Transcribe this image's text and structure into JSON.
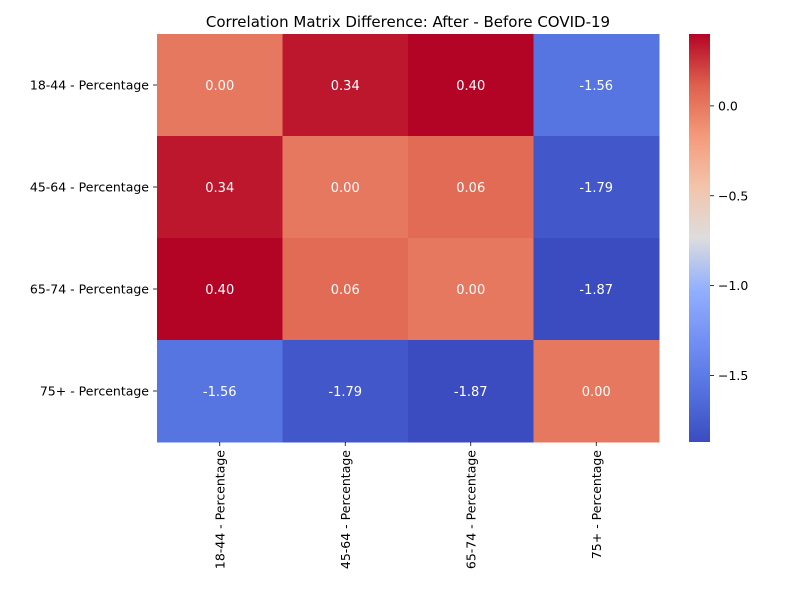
{
  "chart_data": {
    "type": "heatmap",
    "title": "Correlation Matrix Difference: After - Before COVID-19",
    "rows": [
      "18-44 - Percentage",
      "45-64 - Percentage",
      "65-74 - Percentage",
      "75+ - Percentage"
    ],
    "columns": [
      "18-44 - Percentage",
      "45-64 - Percentage",
      "65-74 - Percentage",
      "75+ - Percentage"
    ],
    "values": [
      [
        0.0,
        0.34,
        0.4,
        -1.56
      ],
      [
        0.34,
        0.0,
        0.06,
        -1.79
      ],
      [
        0.4,
        0.06,
        0.0,
        -1.87
      ],
      [
        -1.56,
        -1.79,
        -1.87,
        0.0
      ]
    ],
    "colormap": "coolwarm",
    "vmin": -1.87,
    "vmax": 0.4,
    "colorbar_ticks": [
      0.0,
      -0.5,
      -1.0,
      -1.5
    ],
    "colorbar_tick_labels": [
      "0.0",
      "−0.5",
      "−1.0",
      "−1.5"
    ],
    "annotation_colors": {
      "light_cells": "#ffffff"
    }
  }
}
